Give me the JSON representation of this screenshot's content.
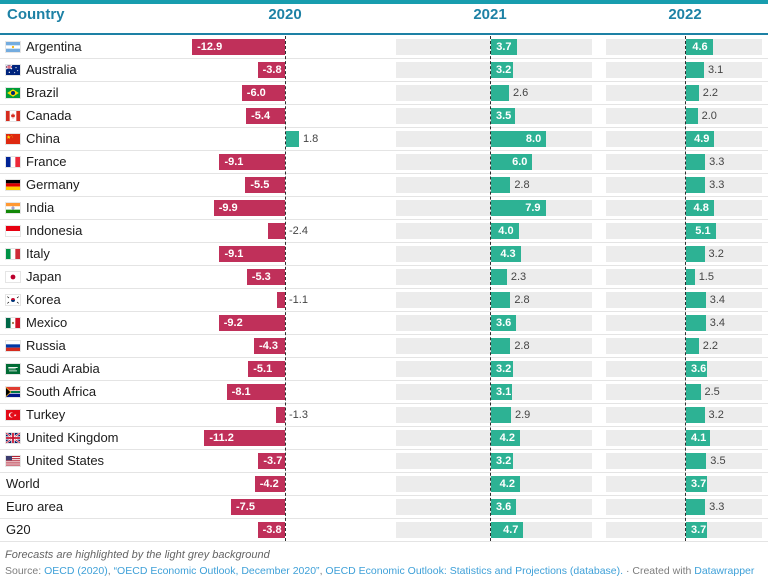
{
  "header": {
    "country_label": "Country",
    "years": [
      "2020",
      "2021",
      "2022"
    ]
  },
  "chart_data": {
    "type": "bar",
    "orientation": "horizontal",
    "columns": [
      "Country",
      "2020",
      "2021",
      "2022"
    ],
    "forecast_columns": [
      "2021",
      "2022"
    ],
    "categories": [
      "Argentina",
      "Australia",
      "Brazil",
      "Canada",
      "China",
      "France",
      "Germany",
      "India",
      "Indonesia",
      "Italy",
      "Japan",
      "Korea",
      "Mexico",
      "Russia",
      "Saudi Arabia",
      "South Africa",
      "Turkey",
      "United Kingdom",
      "United States",
      "World",
      "Euro area",
      "G20"
    ],
    "flag_icons": [
      "argentina-flag",
      "australia-flag",
      "brazil-flag",
      "canada-flag",
      "china-flag",
      "france-flag",
      "germany-flag",
      "india-flag",
      "indonesia-flag",
      "italy-flag",
      "japan-flag",
      "korea-flag",
      "mexico-flag",
      "russia-flag",
      "saudi-arabia-flag",
      "south-africa-flag",
      "turkey-flag",
      "united-kingdom-flag",
      "united-states-flag",
      null,
      null,
      null
    ],
    "series": [
      {
        "name": "2020",
        "forecast": false,
        "values": [
          -12.9,
          -3.8,
          -6.0,
          -5.4,
          1.8,
          -9.1,
          -5.5,
          -9.9,
          -2.4,
          -9.1,
          -5.3,
          -1.1,
          -9.2,
          -4.3,
          -5.1,
          -8.1,
          -1.3,
          -11.2,
          -3.7,
          -4.2,
          -7.5,
          -3.8
        ]
      },
      {
        "name": "2021",
        "forecast": true,
        "values": [
          3.7,
          3.2,
          2.6,
          3.5,
          8.0,
          6.0,
          2.8,
          7.9,
          4.0,
          4.3,
          2.3,
          2.8,
          3.6,
          2.8,
          3.2,
          3.1,
          2.9,
          4.2,
          3.2,
          4.2,
          3.6,
          4.7
        ]
      },
      {
        "name": "2022",
        "forecast": true,
        "values": [
          4.6,
          3.1,
          2.2,
          2.0,
          4.9,
          3.3,
          3.3,
          4.8,
          5.1,
          3.2,
          1.5,
          3.4,
          3.4,
          2.2,
          3.6,
          2.5,
          3.2,
          4.1,
          3.5,
          3.7,
          3.3,
          3.7
        ]
      }
    ],
    "colors": {
      "positive": "#2db294",
      "negative": "#c0305a",
      "forecast_background": "#ececec",
      "header_accent": "#1d81a5",
      "top_bar": "#189dae",
      "link": "#3ea0d8"
    }
  },
  "footer": {
    "note": "Forecasts are highlighted by the light grey background",
    "source_parts": [
      {
        "text": "Source: ",
        "link": false
      },
      {
        "text": "OECD (2020)",
        "link": true
      },
      {
        "text": ", ",
        "link": false
      },
      {
        "text": "“OECD Economic Outlook, December 2020”",
        "link": true
      },
      {
        "text": ", ",
        "link": false
      },
      {
        "text": "OECD Economic Outlook: Statistics and Projections (database).",
        "link": true
      },
      {
        "text": " · Created with ",
        "link": false
      },
      {
        "text": "Datawrapper",
        "link": true
      }
    ]
  }
}
